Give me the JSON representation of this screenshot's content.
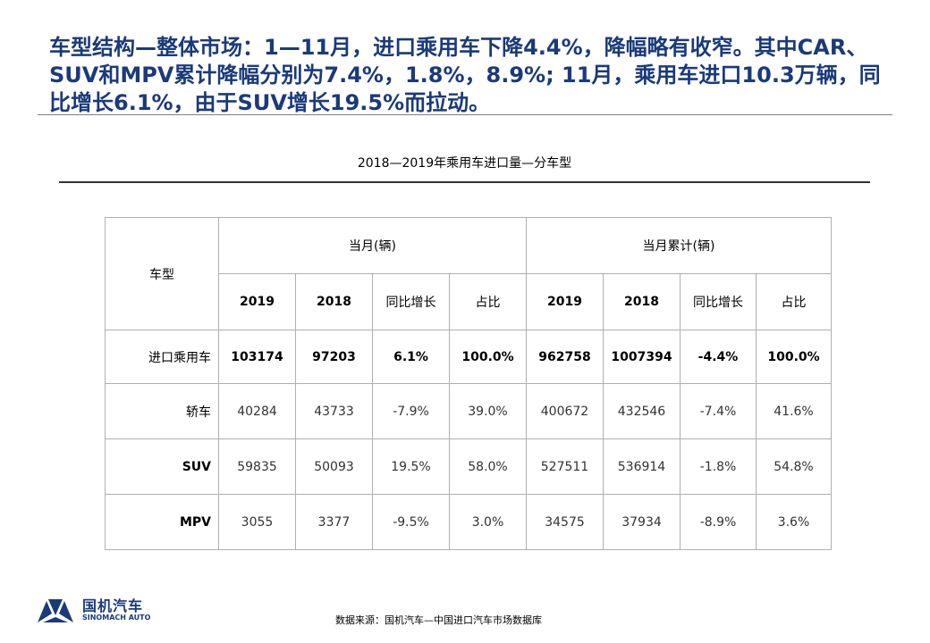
{
  "headline": "车型结构—整体市场：1—11月，进口乘用车下降4.4%，降幅略有收窄。其中CAR、SUV和MPV累计降幅分别为7.4%，1.8%，8.9%; 11月，乘用车进口10.3万辆，同比增长6.1%，由于SUV增长19.5%而拉动。",
  "table_title": "2018—2019年乘用车进口量—分车型",
  "table": {
    "type_header": "车型",
    "group_month": "当月(辆)",
    "group_cumulative": "当月累计(辆)",
    "sub_headers": [
      "2019",
      "2018",
      "同比增长",
      "占比",
      "2019",
      "2018",
      "同比增长",
      "占比"
    ],
    "rows": [
      {
        "label": "进口乘用车",
        "cells": [
          "103174",
          "97203",
          "6.1%",
          "100.0%",
          "962758",
          "1007394",
          "-4.4%",
          "100.0%"
        ]
      },
      {
        "label": "轿车",
        "cells": [
          "40284",
          "43733",
          "-7.9%",
          "39.0%",
          "400672",
          "432546",
          "-7.4%",
          "41.6%"
        ]
      },
      {
        "label": "SUV",
        "cells": [
          "59835",
          "50093",
          "19.5%",
          "58.0%",
          "527511",
          "536914",
          "-1.8%",
          "54.8%"
        ]
      },
      {
        "label": "MPV",
        "cells": [
          "3055",
          "3377",
          "-9.5%",
          "3.0%",
          "34575",
          "37934",
          "-8.9%",
          "3.6%"
        ]
      }
    ]
  },
  "logo": {
    "cn": "国机汽车",
    "en": "SINOMACH AUTO",
    "icon": "sinomach-logo-icon",
    "color": "#1a3a7a"
  },
  "source": "数据来源：国机汽车—中国进口汽车市场数据库"
}
